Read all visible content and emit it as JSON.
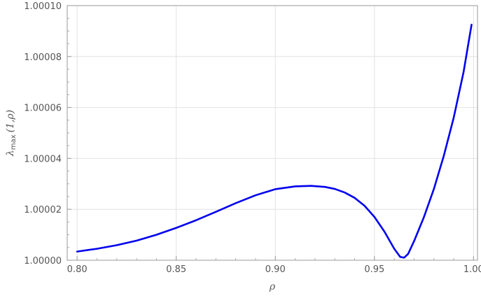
{
  "chart_data": {
    "type": "line",
    "title": "",
    "xlabel": "ρ",
    "ylabel": {
      "main": "λ",
      "sub": "max",
      "args": "(1,ρ)"
    },
    "xlim": [
      0.795,
      1.002
    ],
    "ylim": [
      1.0,
      1.0001
    ],
    "grid": true,
    "x_ticks": [
      {
        "value": 0.8,
        "label": "0.80"
      },
      {
        "value": 0.85,
        "label": "0.85"
      },
      {
        "value": 0.9,
        "label": "0.90"
      },
      {
        "value": 0.95,
        "label": "0.95"
      },
      {
        "value": 1.0,
        "label": "1.00"
      }
    ],
    "y_ticks": [
      {
        "value": 1.0,
        "label": "1.00000"
      },
      {
        "value": 1.00002,
        "label": "1.00002"
      },
      {
        "value": 1.00004,
        "label": "1.00004"
      },
      {
        "value": 1.00006,
        "label": "1.00006"
      },
      {
        "value": 1.00008,
        "label": "1.00008"
      },
      {
        "value": 1.0001,
        "label": "1.00010"
      }
    ],
    "series": [
      {
        "color": "#0000ee",
        "points": [
          [
            0.8,
            1.0000034
          ],
          [
            0.81,
            1.0000045
          ],
          [
            0.82,
            1.0000059
          ],
          [
            0.83,
            1.0000077
          ],
          [
            0.84,
            1.00001
          ],
          [
            0.85,
            1.0000127
          ],
          [
            0.86,
            1.0000157
          ],
          [
            0.87,
            1.000019
          ],
          [
            0.88,
            1.0000224
          ],
          [
            0.89,
            1.0000255
          ],
          [
            0.9,
            1.0000279
          ],
          [
            0.91,
            1.000029
          ],
          [
            0.918,
            1.0000292
          ],
          [
            0.925,
            1.0000288
          ],
          [
            0.93,
            1.000028
          ],
          [
            0.935,
            1.0000266
          ],
          [
            0.94,
            1.0000245
          ],
          [
            0.945,
            1.0000214
          ],
          [
            0.95,
            1.000017
          ],
          [
            0.955,
            1.0000113
          ],
          [
            0.96,
            1.0000045
          ],
          [
            0.963,
            1.0000013
          ],
          [
            0.965,
            1.000001
          ],
          [
            0.967,
            1.0000025
          ],
          [
            0.97,
            1.0000075
          ],
          [
            0.975,
            1.000017
          ],
          [
            0.98,
            1.000028
          ],
          [
            0.985,
            1.000041
          ],
          [
            0.99,
            1.000056
          ],
          [
            0.995,
            1.000074
          ],
          [
            0.999,
            1.0000925
          ]
        ]
      }
    ]
  }
}
